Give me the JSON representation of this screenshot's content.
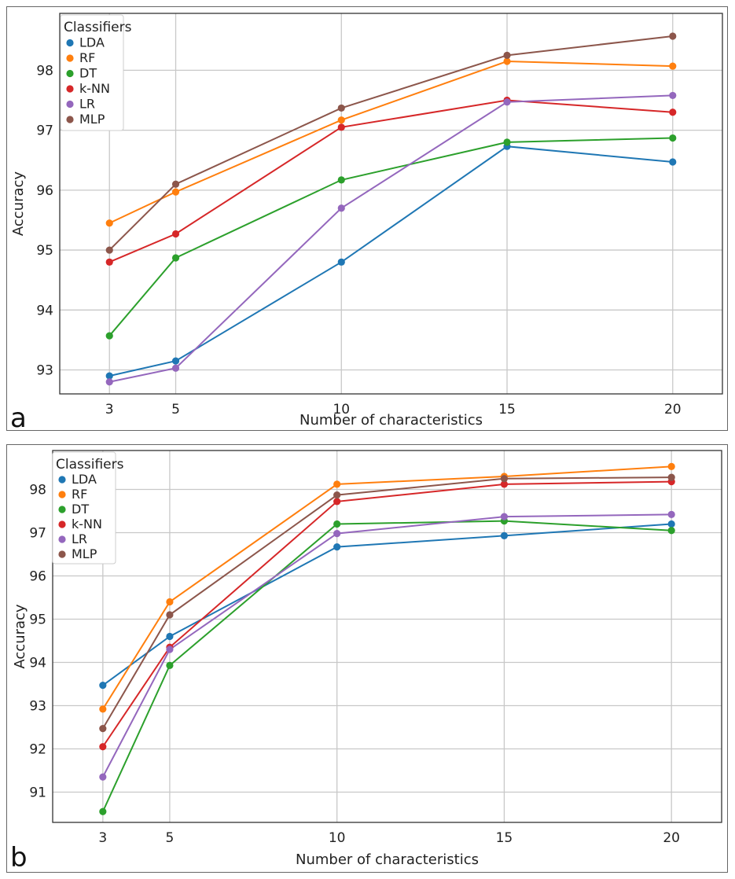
{
  "chart_data": [
    {
      "type": "line",
      "panel_label": "a",
      "title": "",
      "xlabel": "Number of characteristics",
      "ylabel": "Accuracy",
      "x": [
        3,
        5,
        10,
        15,
        20
      ],
      "xlim": [
        1.5,
        21.5
      ],
      "ylim": [
        92.6,
        98.95
      ],
      "xticks": [
        "3",
        "5",
        "10",
        "15",
        "20"
      ],
      "yticks": [
        "93",
        "94",
        "95",
        "96",
        "97",
        "98"
      ],
      "grid": true,
      "legend": {
        "title": "Classifiers",
        "position": "top-left"
      },
      "series": [
        {
          "name": "LDA",
          "color": "#1f77b4",
          "values": [
            92.9,
            93.15,
            94.8,
            96.73,
            96.47
          ]
        },
        {
          "name": "RF",
          "color": "#ff7f0e",
          "values": [
            95.45,
            95.97,
            97.17,
            98.15,
            98.07
          ]
        },
        {
          "name": "DT",
          "color": "#2ca02c",
          "values": [
            93.57,
            94.87,
            96.17,
            96.8,
            96.87
          ]
        },
        {
          "name": "k-NN",
          "color": "#d62728",
          "values": [
            94.8,
            95.27,
            97.05,
            97.5,
            97.3
          ]
        },
        {
          "name": "LR",
          "color": "#9467bd",
          "values": [
            92.8,
            93.03,
            95.7,
            97.47,
            97.58
          ]
        },
        {
          "name": "MLP",
          "color": "#8c564b",
          "values": [
            95.0,
            96.1,
            97.37,
            98.25,
            98.57
          ]
        }
      ]
    },
    {
      "type": "line",
      "panel_label": "b",
      "title": "",
      "xlabel": "Number of characteristics",
      "ylabel": "Accuracy",
      "x": [
        3,
        5,
        10,
        15,
        20
      ],
      "xlim": [
        1.5,
        21.5
      ],
      "ylim": [
        90.3,
        98.9
      ],
      "xticks": [
        "3",
        "5",
        "10",
        "15",
        "20"
      ],
      "yticks": [
        "91",
        "92",
        "93",
        "94",
        "95",
        "96",
        "97",
        "98"
      ],
      "grid": true,
      "legend": {
        "title": "Classifiers",
        "position": "top-left"
      },
      "series": [
        {
          "name": "LDA",
          "color": "#1f77b4",
          "values": [
            93.47,
            94.6,
            96.67,
            96.93,
            97.2
          ]
        },
        {
          "name": "RF",
          "color": "#ff7f0e",
          "values": [
            92.92,
            95.4,
            98.12,
            98.3,
            98.53
          ]
        },
        {
          "name": "DT",
          "color": "#2ca02c",
          "values": [
            90.55,
            93.93,
            97.2,
            97.27,
            97.05
          ]
        },
        {
          "name": "k-NN",
          "color": "#d62728",
          "values": [
            92.05,
            94.35,
            97.72,
            98.12,
            98.18
          ]
        },
        {
          "name": "LR",
          "color": "#9467bd",
          "values": [
            91.35,
            94.3,
            96.98,
            97.37,
            97.42
          ]
        },
        {
          "name": "MLP",
          "color": "#8c564b",
          "values": [
            92.47,
            95.1,
            97.87,
            98.25,
            98.28
          ]
        }
      ]
    }
  ]
}
